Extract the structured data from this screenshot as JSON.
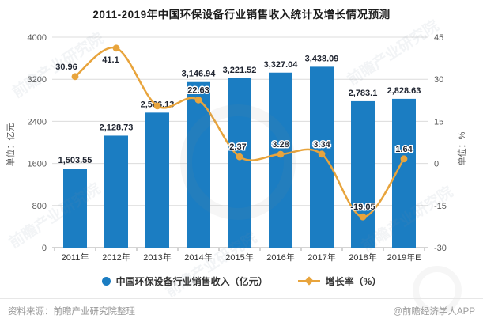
{
  "title": "2011-2019年中国环保设备行业销售收入统计及增长情况预测",
  "chart_data": {
    "type": "bar",
    "title": "2011-2019年中国环保设备行业销售收入统计及增长情况预测",
    "categories": [
      "2011年",
      "2012年",
      "2013年",
      "2014年",
      "2015年",
      "2016年",
      "2017年",
      "2018年",
      "2019年E"
    ],
    "series": [
      {
        "name": "中国环保设备行业销售收入（亿元）",
        "type": "bar",
        "axis": "left",
        "color": "#1B7DC2",
        "values": [
          1503.55,
          2128.73,
          2566.13,
          3146.94,
          3221.52,
          3327.04,
          3438.09,
          2783.1,
          2828.63
        ],
        "labels": [
          "1,503.55",
          "2,128.73",
          "2,566.13",
          "3,146.94",
          "3,221.52",
          "3,327.04",
          "3,438.09",
          "2,783.1",
          "2,828.63"
        ]
      },
      {
        "name": "增长率（%）",
        "type": "line",
        "axis": "right",
        "color": "#E8A43C",
        "values": [
          30.96,
          41.1,
          20.5,
          22.63,
          2.37,
          3.28,
          3.34,
          -19.05,
          1.64
        ],
        "labels": [
          "30.96",
          "41.1",
          "",
          "22.63",
          "2.37",
          "3.28",
          "3.34",
          "-19.05",
          "1.64"
        ]
      }
    ],
    "left_axis": {
      "title": "单位：亿元",
      "ticks": [
        4000,
        3200,
        2400,
        1600,
        800,
        0
      ],
      "min": 0,
      "max": 4000
    },
    "right_axis": {
      "title": "单位：%",
      "ticks": [
        45,
        30,
        15,
        0,
        -15,
        -30
      ],
      "min": -30,
      "max": 45
    },
    "grid": true,
    "legend_position": "bottom"
  },
  "legend": {
    "items": [
      {
        "label": "中国环保设备行业销售收入（亿元）",
        "marker": "circle",
        "color": "#1B7DC2"
      },
      {
        "label": "增长率（%）",
        "marker": "diamond-line",
        "color": "#E8A43C"
      }
    ]
  },
  "footer": {
    "source": "资料来源：前瞻产业研究院整理",
    "credit": "@前瞻经济学人APP"
  },
  "watermark": {
    "text": "前瞻产业研究院"
  },
  "colors": {
    "bar": "#1B7DC2",
    "line": "#E8A43C",
    "grid": "#dcdcdc",
    "axis": "#a8a8a8",
    "tick_text": "#595959",
    "label_text": "#1f2430",
    "xlabel_text": "#333333",
    "footer_text": "#9b9b9b"
  }
}
